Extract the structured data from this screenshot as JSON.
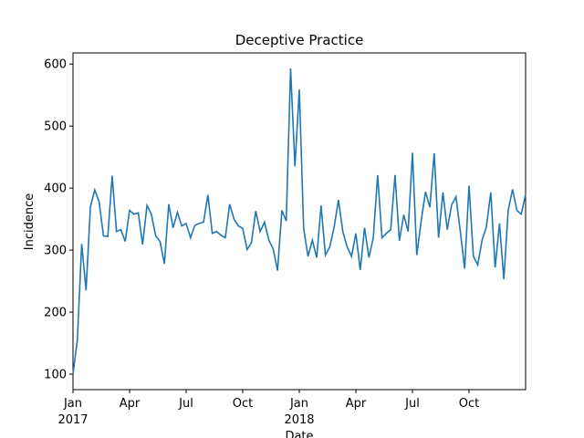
{
  "chart_data": {
    "type": "line",
    "title": "Deceptive Practice",
    "x_label": "Date",
    "y_label": "Incidence",
    "x": [
      0,
      1,
      2,
      3,
      4,
      5,
      6,
      7,
      8,
      9,
      10,
      11,
      12,
      13,
      14,
      15,
      16,
      17,
      18,
      19,
      20,
      21,
      22,
      23,
      24,
      25,
      26,
      27,
      28,
      29,
      30,
      31,
      32,
      33,
      34,
      35,
      36,
      37,
      38,
      39,
      40,
      41,
      42,
      43,
      44,
      45,
      46,
      47,
      48,
      49,
      50,
      51,
      52,
      53,
      54,
      55,
      56,
      57,
      58,
      59,
      60,
      61,
      62,
      63,
      64,
      65,
      66,
      67,
      68,
      69,
      70,
      71,
      72,
      73,
      74,
      75,
      76,
      77,
      78,
      79,
      80,
      81,
      82,
      83,
      84,
      85,
      86,
      87,
      88,
      89,
      90,
      91,
      92,
      93,
      94,
      95,
      96,
      97,
      98,
      99,
      100,
      101,
      102,
      103,
      104
    ],
    "series": [
      {
        "name": "Incidence",
        "color": "#1f77b4",
        "values": [
          100,
          155,
          310,
          235,
          370,
          397,
          378,
          323,
          322,
          420,
          330,
          333,
          314,
          364,
          358,
          360,
          309,
          372,
          358,
          323,
          314,
          278,
          374,
          336,
          361,
          339,
          343,
          320,
          340,
          343,
          345,
          389,
          327,
          330,
          324,
          320,
          374,
          350,
          339,
          335,
          301,
          312,
          363,
          330,
          345,
          316,
          302,
          267,
          364,
          347,
          593,
          435,
          559,
          335,
          290,
          316,
          288,
          372,
          292,
          305,
          337,
          381,
          330,
          305,
          290,
          327,
          268,
          336,
          288,
          320,
          421,
          320,
          327,
          333,
          421,
          315,
          357,
          330,
          457,
          292,
          347,
          394,
          369,
          456,
          320,
          393,
          333,
          373,
          386,
          330,
          270,
          404,
          290,
          276,
          316,
          338,
          393,
          272,
          343,
          253,
          364,
          398,
          364,
          358,
          390
        ]
      }
    ],
    "xlim": [
      0,
      104
    ],
    "xticks": [
      {
        "value": 0,
        "label": "Jan"
      },
      {
        "value": 13,
        "label": "Apr"
      },
      {
        "value": 26,
        "label": "Jul"
      },
      {
        "value": 39,
        "label": "Oct"
      },
      {
        "value": 52,
        "label": "Jan"
      },
      {
        "value": 65,
        "label": "Apr"
      },
      {
        "value": 78,
        "label": "Jul"
      },
      {
        "value": 91,
        "label": "Oct"
      }
    ],
    "year_labels": [
      {
        "value": 0,
        "label": "2017"
      },
      {
        "value": 52,
        "label": "2018"
      }
    ],
    "ylim": [
      75,
      618
    ],
    "yticks": [
      100,
      200,
      300,
      400,
      500,
      600
    ],
    "grid": false
  }
}
